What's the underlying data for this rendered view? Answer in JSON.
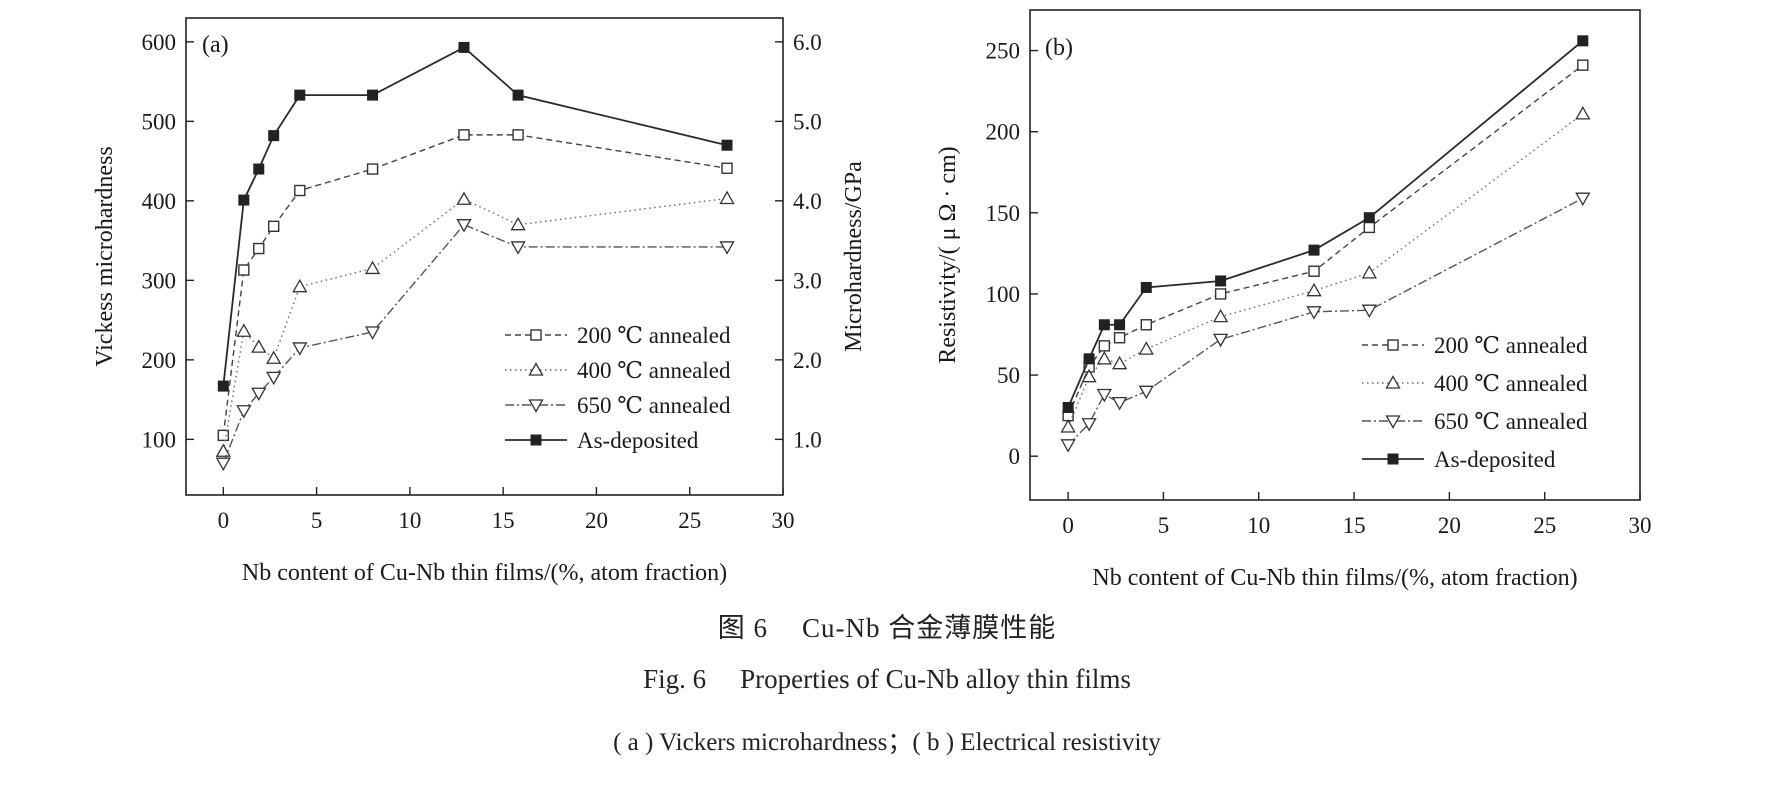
{
  "figure": {
    "caption_cn_num": "图 6",
    "caption_cn_text": "Cu-Nb 合金薄膜性能",
    "caption_en_num": "Fig. 6",
    "caption_en_text": "Properties of Cu-Nb alloy thin films",
    "caption_sub": "( a ) Vickers microhardness；( b ) Electrical resistivity"
  },
  "chart_data": [
    {
      "type": "line",
      "panel_label": "(a)",
      "xlabel": "Nb content of Cu-Nb thin films/(%, atom fraction)",
      "ylabel": "Vickess microhardness",
      "y2label": "Microhardness/GPa",
      "xlim": [
        -2,
        30
      ],
      "ylim": [
        30,
        630
      ],
      "y2lim": [
        0.3,
        6.3
      ],
      "xticks": [
        0,
        5,
        10,
        15,
        20,
        25,
        30
      ],
      "yticks": [
        100,
        200,
        300,
        400,
        500,
        600
      ],
      "y2ticks": [
        1.0,
        2.0,
        3.0,
        4.0,
        5.0,
        6.0
      ],
      "legend_position": "bottom-right",
      "grid": false,
      "series": [
        {
          "name": "200 ℃ annealed",
          "marker": "square-open",
          "line": "dashed",
          "x": [
            0,
            1.1,
            1.9,
            2.7,
            4.1,
            8,
            12.9,
            15.8,
            27
          ],
          "y": [
            105,
            313,
            340,
            368,
            413,
            440,
            483,
            483,
            441
          ]
        },
        {
          "name": "400 ℃ annealed",
          "marker": "triangle-up-open",
          "line": "dotted",
          "x": [
            0,
            1.1,
            1.9,
            2.7,
            4.1,
            8,
            12.9,
            15.8,
            27
          ],
          "y": [
            85,
            236,
            216,
            202,
            292,
            315,
            402,
            370,
            403
          ]
        },
        {
          "name": "650 ℃ annealed",
          "marker": "triangle-down-open",
          "line": "dashdot",
          "x": [
            0,
            1.1,
            1.9,
            2.7,
            4.1,
            8,
            12.9,
            15.8,
            27
          ],
          "y": [
            70,
            136,
            158,
            178,
            215,
            235,
            370,
            342,
            342
          ]
        },
        {
          "name": "As-deposited",
          "marker": "square-filled",
          "line": "solid",
          "x": [
            0,
            1.1,
            1.9,
            2.7,
            4.1,
            8,
            12.9,
            15.8,
            27
          ],
          "y": [
            167,
            401,
            440,
            482,
            533,
            533,
            593,
            533,
            470
          ]
        }
      ]
    },
    {
      "type": "line",
      "panel_label": "(b)",
      "xlabel": "Nb content of Cu-Nb thin films/(%, atom fraction)",
      "ylabel": "Resistivity/( μ Ω · cm)",
      "xlim": [
        -2,
        30
      ],
      "ylim": [
        -27,
        275
      ],
      "xticks": [
        0,
        5,
        10,
        15,
        20,
        25,
        30
      ],
      "yticks": [
        0,
        50,
        100,
        150,
        200,
        250
      ],
      "legend_position": "bottom-right",
      "grid": false,
      "series": [
        {
          "name": "200 ℃ annealed",
          "marker": "square-open",
          "line": "dashed",
          "x": [
            0,
            1.1,
            1.9,
            2.7,
            4.1,
            8,
            12.9,
            15.8,
            27
          ],
          "y": [
            25,
            55,
            68,
            73,
            81,
            100,
            114,
            141,
            241
          ]
        },
        {
          "name": "400 ℃ annealed",
          "marker": "triangle-up-open",
          "line": "dotted",
          "x": [
            0,
            1.1,
            1.9,
            2.7,
            4.1,
            8,
            12.9,
            15.8,
            27
          ],
          "y": [
            18,
            49,
            60,
            57,
            66,
            86,
            102,
            113,
            211
          ]
        },
        {
          "name": "650 ℃ annealed",
          "marker": "triangle-down-open",
          "line": "dashdot",
          "x": [
            0,
            1.1,
            1.9,
            2.7,
            4.1,
            8,
            12.9,
            15.8,
            27
          ],
          "y": [
            7,
            20,
            38,
            33,
            40,
            72,
            89,
            90,
            159
          ]
        },
        {
          "name": "As-deposited",
          "marker": "square-filled",
          "line": "solid",
          "x": [
            0,
            1.1,
            1.9,
            2.7,
            4.1,
            8,
            12.9,
            15.8,
            27
          ],
          "y": [
            30,
            60,
            81,
            81,
            104,
            108,
            127,
            147,
            256
          ]
        }
      ]
    }
  ]
}
